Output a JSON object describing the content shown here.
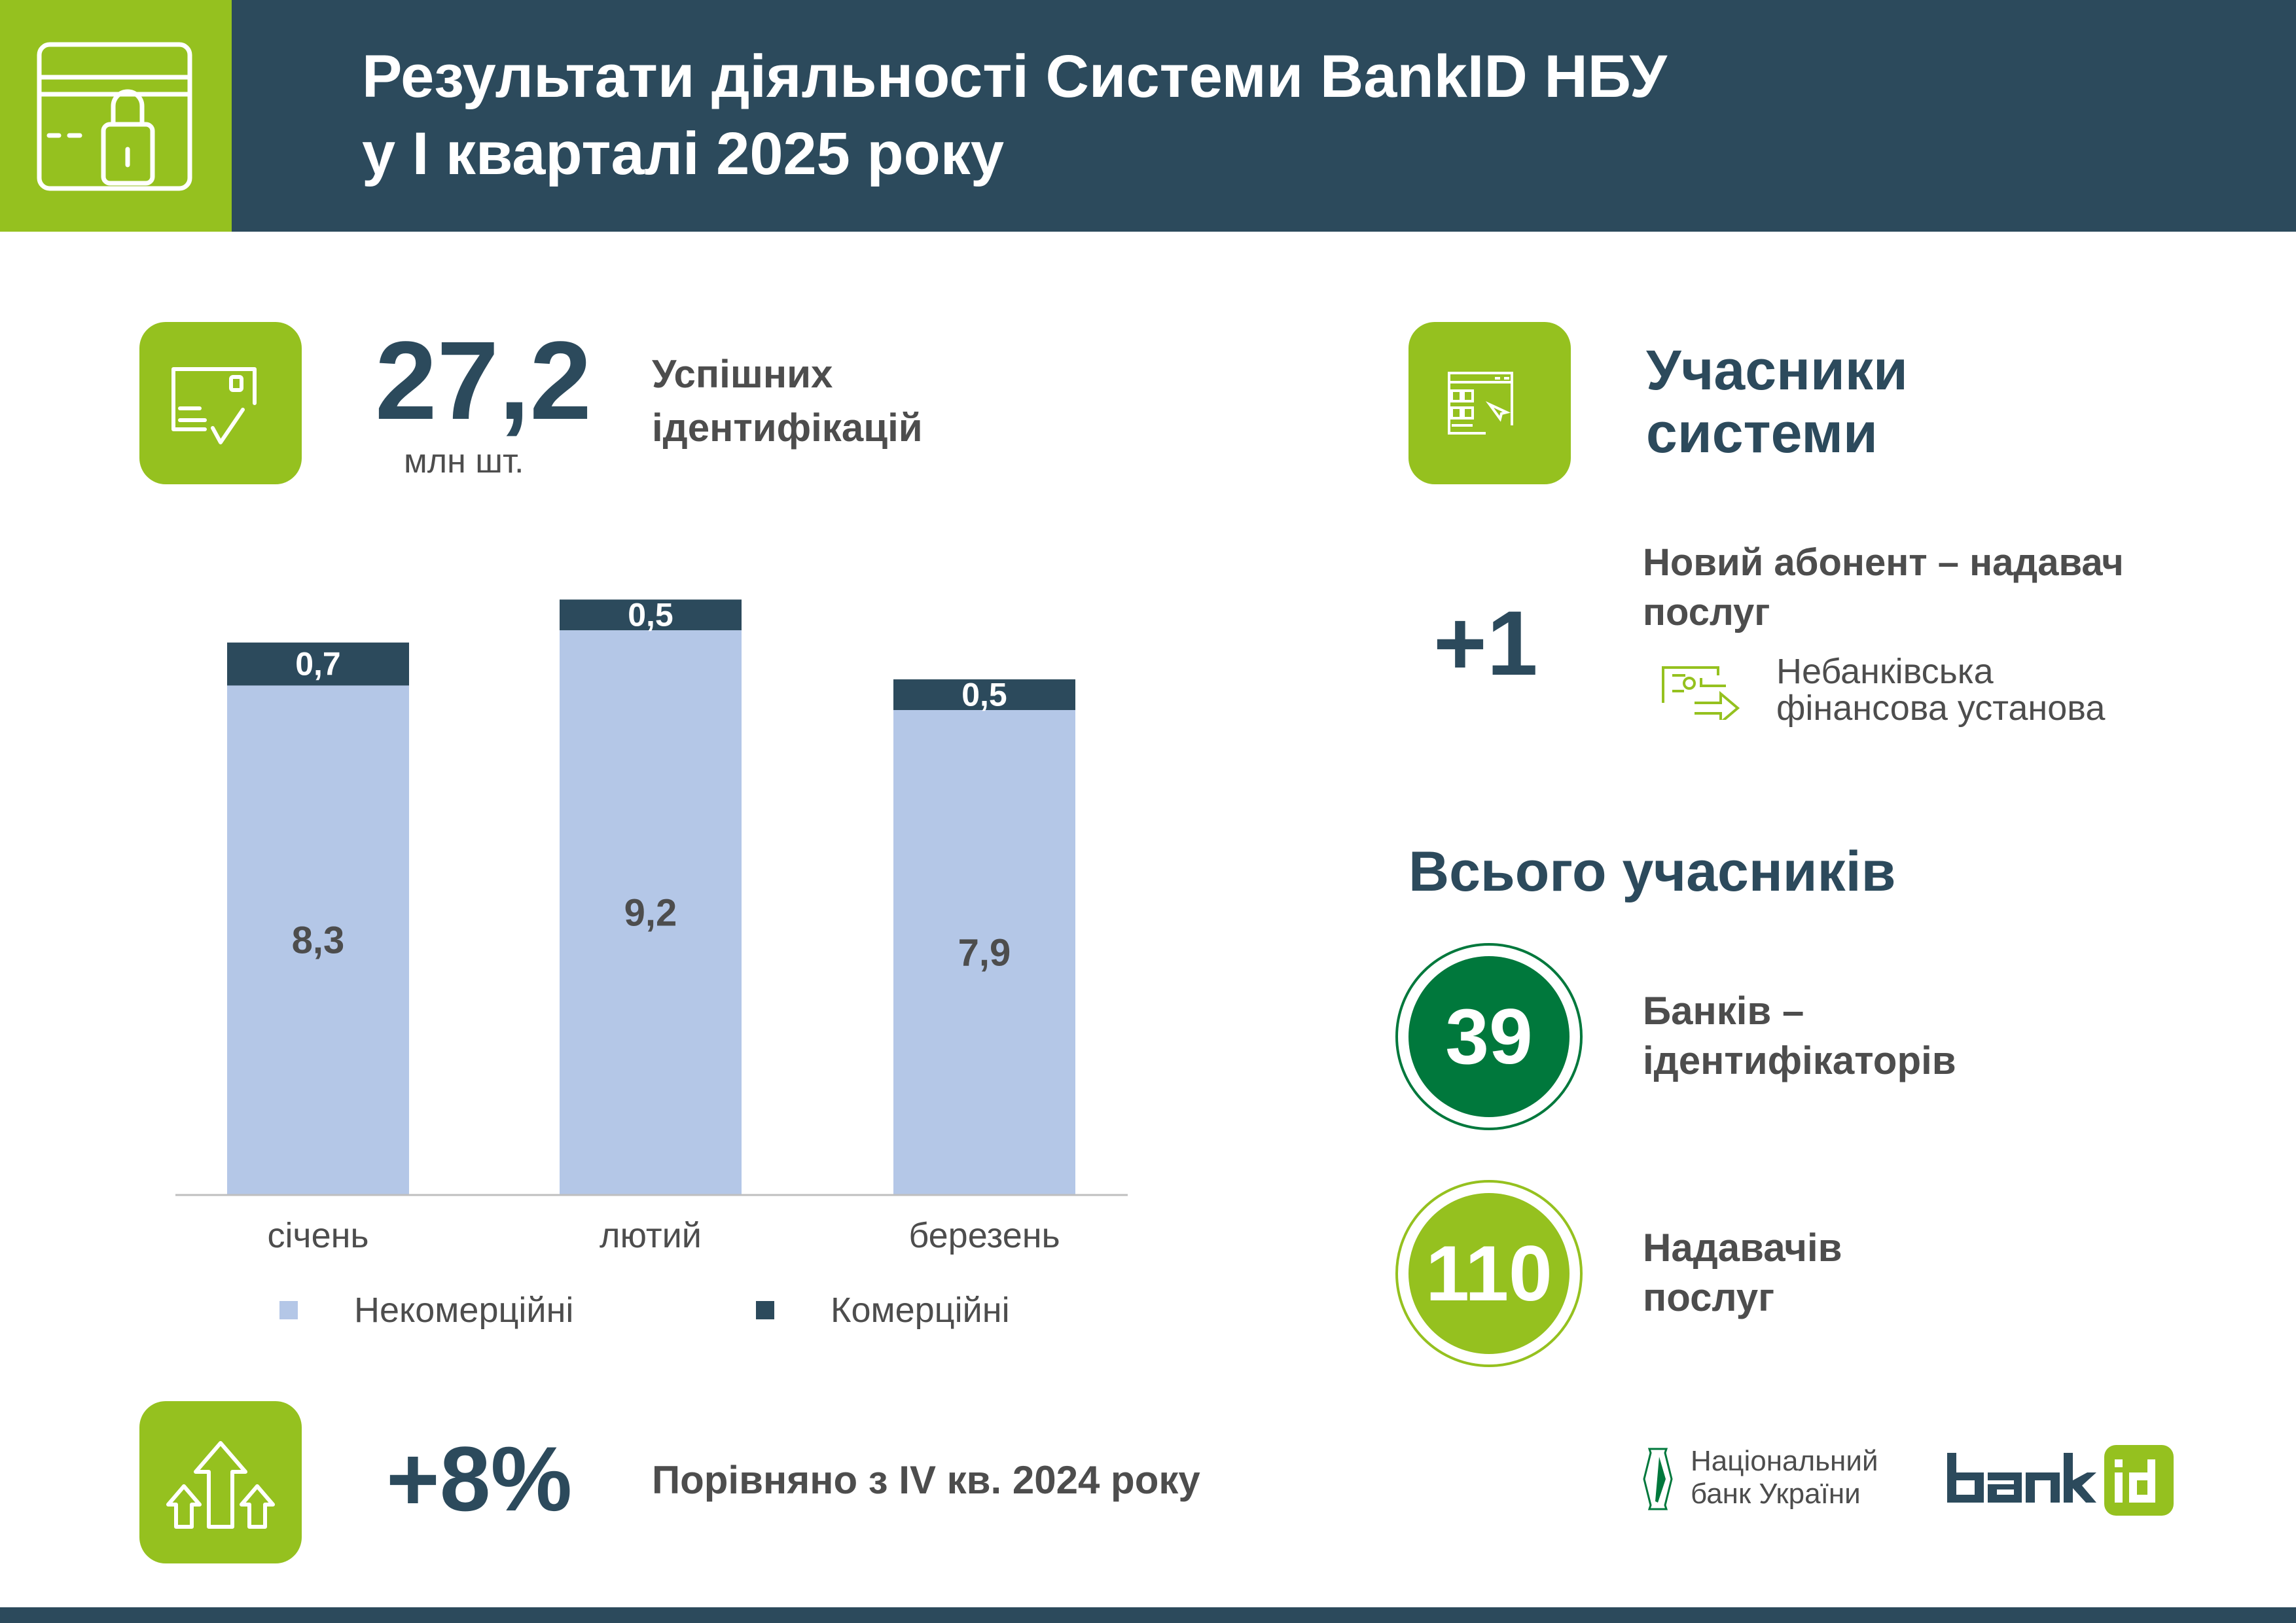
{
  "header": {
    "title_line1": "Результати діяльності Системи BankID НБУ",
    "title_line2": "у I кварталі 2025 року",
    "icon": "card-lock-icon"
  },
  "identifications": {
    "value": "27,2",
    "unit": "млн шт.",
    "label_line1": "Успішних",
    "label_line2": "ідентифікацій",
    "icon": "card-check-icon"
  },
  "growth": {
    "value": "+8%",
    "label": "Порівняно з IV кв. 2024 року",
    "icon": "arrows-up-icon"
  },
  "participants": {
    "heading_line1": "Учасники",
    "heading_line2": "системи",
    "icon": "browser-click-icon",
    "new_count": "+1",
    "new_label_line1": "Новий абонент – надавач",
    "new_label_line2": "послуг",
    "new_type_line1": "Небанківська",
    "new_type_line2": "фінансова установа",
    "new_type_icon": "money-exchange-icon",
    "total_heading": "Всього учасників",
    "banks_count": "39",
    "banks_label_line1": "Банків –",
    "banks_label_line2": "ідентифікаторів",
    "providers_count": "110",
    "providers_label_line1": "Надавачів",
    "providers_label_line2": "послуг"
  },
  "logos": {
    "nbu_line1": "Національний",
    "nbu_line2": "банк України",
    "bankid": "bankid"
  },
  "colors": {
    "dark": "#2c4a5c",
    "green": "#95c11f",
    "dark_green": "#00783c",
    "noncommercial": "#b4c7e7",
    "commercial": "#2c4a5c"
  },
  "chart_data": {
    "type": "bar",
    "stacked": true,
    "categories": [
      "січень",
      "лютий",
      "березень"
    ],
    "series": [
      {
        "name": "Некомерційні",
        "values": [
          8.3,
          9.2,
          7.9
        ],
        "labels": [
          "8,3",
          "9,2",
          "7,9"
        ],
        "color": "#b4c7e7"
      },
      {
        "name": "Комерційні",
        "values": [
          0.7,
          0.5,
          0.5
        ],
        "labels": [
          "0,7",
          "0,5",
          "0,5"
        ],
        "color": "#2c4a5c"
      }
    ],
    "legend": "bottom",
    "grid": false
  }
}
